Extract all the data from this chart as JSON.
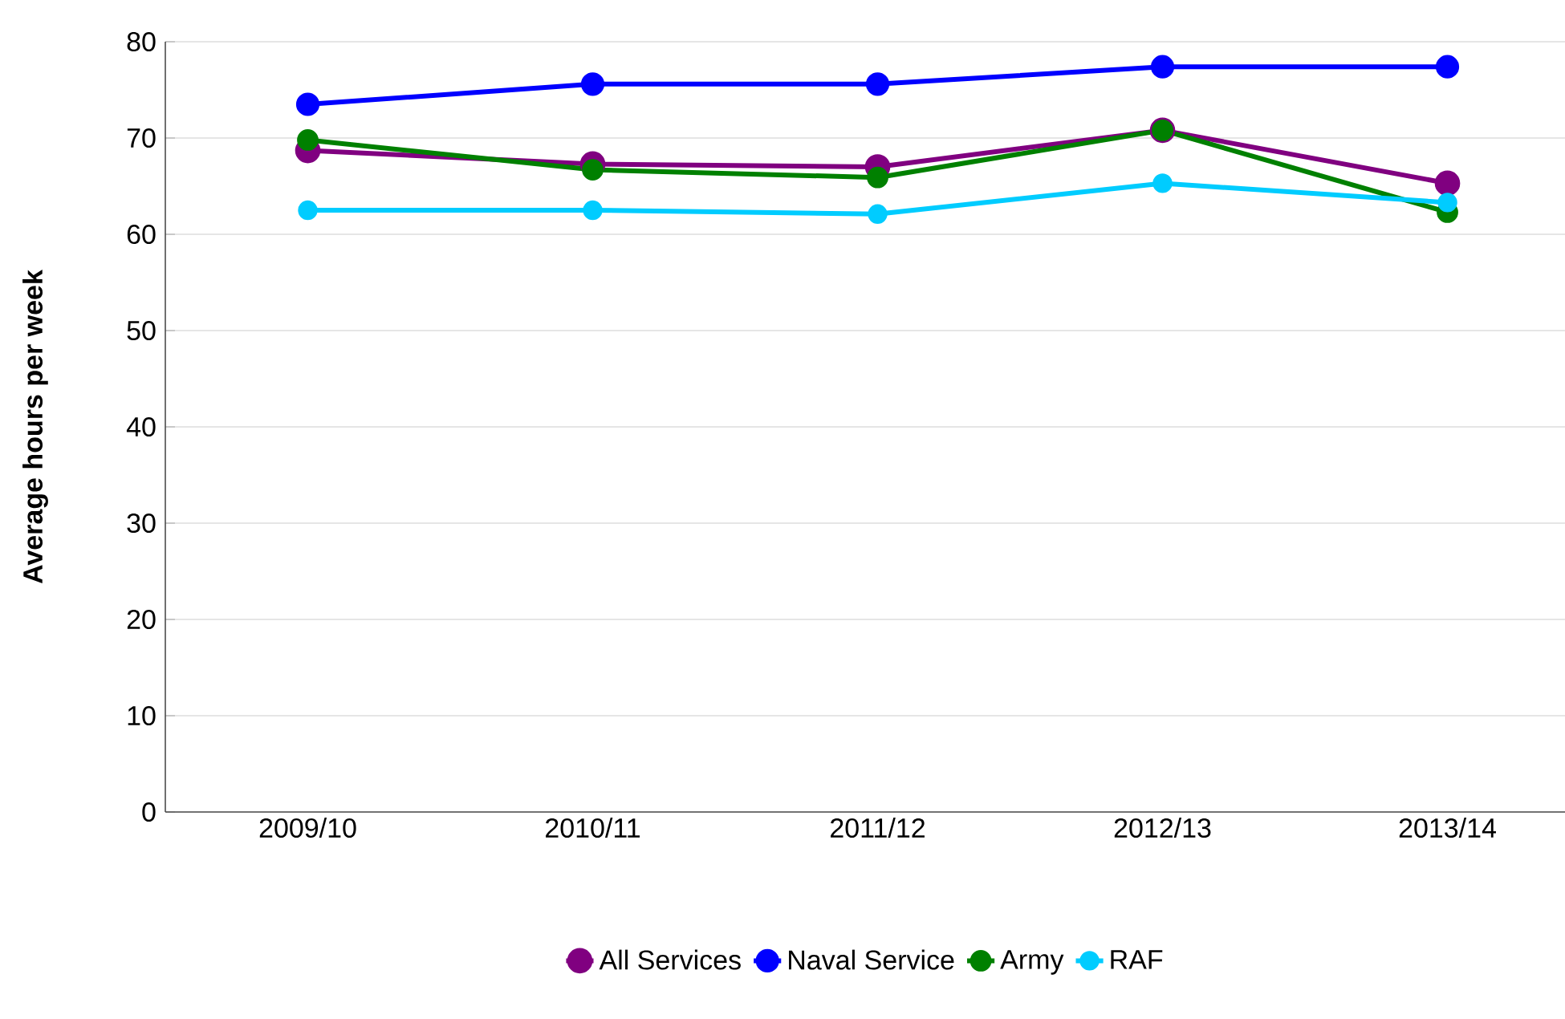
{
  "chart_data": {
    "type": "line",
    "ylabel": "Average hours per week",
    "categories": [
      "2009/10",
      "2010/11",
      "2011/12",
      "2012/13",
      "2013/14"
    ],
    "series": [
      {
        "name": "All Services",
        "color": "#800080",
        "values": [
          68.7,
          67.3,
          67.0,
          70.8,
          65.3
        ]
      },
      {
        "name": "Naval Service",
        "color": "#0000ff",
        "values": [
          73.5,
          75.6,
          75.6,
          77.4,
          77.4
        ]
      },
      {
        "name": "Army",
        "color": "#008000",
        "values": [
          69.8,
          66.7,
          65.9,
          70.8,
          62.3
        ]
      },
      {
        "name": "RAF",
        "color": "#00ccff",
        "values": [
          62.5,
          62.5,
          62.1,
          65.3,
          63.3
        ]
      }
    ],
    "ylim": [
      0,
      80
    ],
    "yticks": [
      0,
      10,
      20,
      30,
      40,
      50,
      60,
      70,
      80
    ],
    "grid": "y",
    "legend": "bottom",
    "marker": "circle",
    "line_style": "solid"
  }
}
